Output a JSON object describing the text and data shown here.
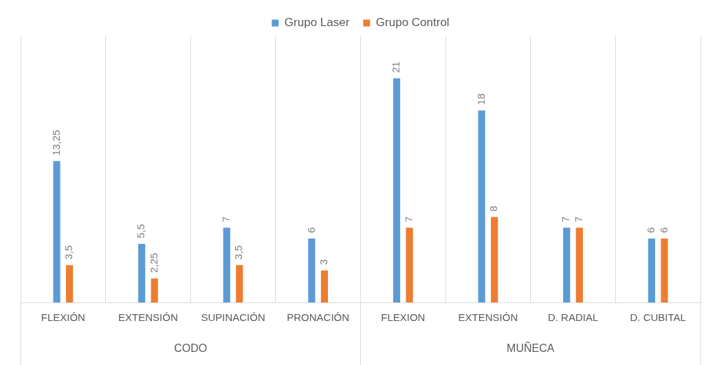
{
  "chart_data": {
    "type": "bar",
    "categories": [
      "FLEXIÓN",
      "EXTENSIÓN",
      "SUPINACIÓN",
      "PRONACIÓN",
      "FLEXION",
      "EXTENSIÓN",
      "D. RADIAL",
      "D. CUBITAL"
    ],
    "series": [
      {
        "name": "Grupo Laser",
        "color": "#5b9bd5",
        "values": [
          13.25,
          5.5,
          7,
          6,
          21,
          18,
          7,
          6
        ],
        "value_labels": [
          "13,25",
          "5,5",
          "7",
          "6",
          "21",
          "18",
          "7",
          "6"
        ]
      },
      {
        "name": "Grupo Control",
        "color": "#ed7d31",
        "values": [
          3.5,
          2.25,
          3.5,
          3,
          7,
          8,
          7,
          6
        ],
        "value_labels": [
          "3,5",
          "2,25",
          "3,5",
          "3",
          "7",
          "8",
          "7",
          "6"
        ]
      }
    ],
    "annotations": [
      "CODO",
      "MUÑECA"
    ],
    "grid": "x",
    "legend": "top"
  }
}
